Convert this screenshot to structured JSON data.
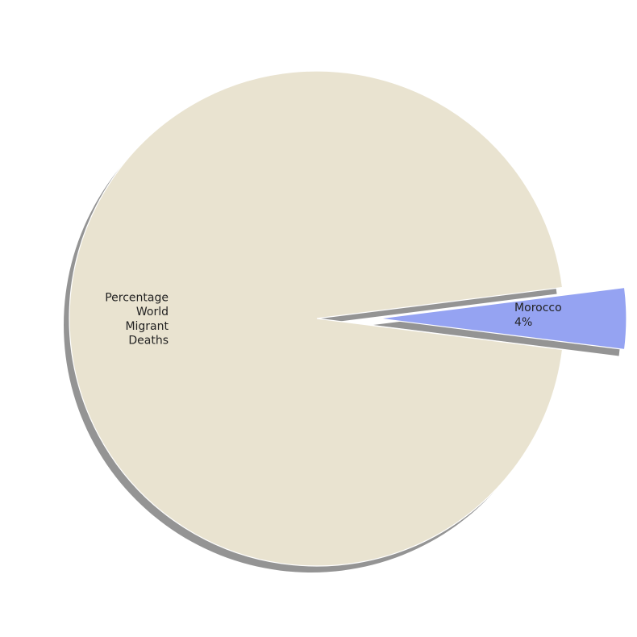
{
  "chart_data": {
    "type": "pie",
    "title": "",
    "slices": [
      {
        "label_lines": [
          "Percentage",
          "World",
          "Migrant",
          "Deaths"
        ],
        "value": 96,
        "percent_label": "",
        "color": "#e9e3d0",
        "exploded": false
      },
      {
        "label_lines": [
          "Morocco"
        ],
        "value": 4,
        "percent_label": "4%",
        "color": "#95a3f2",
        "exploded": true
      }
    ],
    "shadow": true,
    "legend": "none",
    "start": "right",
    "direction": "counterclockwise"
  }
}
